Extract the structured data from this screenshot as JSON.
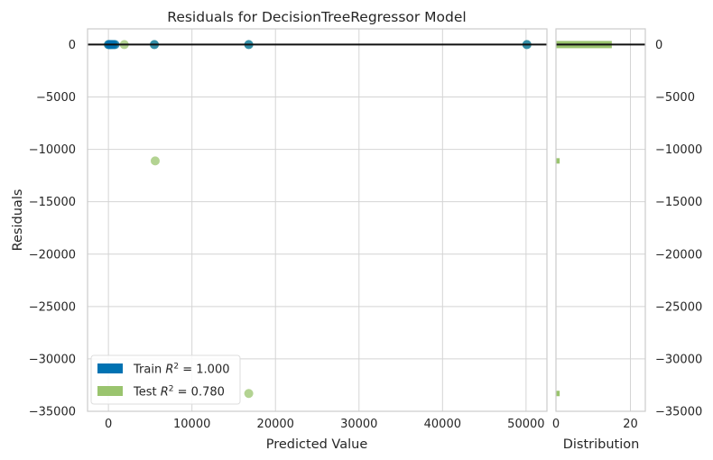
{
  "chart_data": {
    "type": "scatter",
    "title": "Residuals for DecisionTreeRegressor Model",
    "xlabel": "Predicted Value",
    "ylabel": "Residuals",
    "xlim": [
      -2500,
      52500
    ],
    "ylim": [
      -35000,
      1500
    ],
    "xticks": [
      0,
      10000,
      20000,
      30000,
      40000,
      50000
    ],
    "yticks": [
      0,
      -5000,
      -10000,
      -15000,
      -20000,
      -25000,
      -30000,
      -35000
    ],
    "xtick_labels": [
      "0",
      "10000",
      "20000",
      "30000",
      "40000",
      "50000"
    ],
    "ytick_labels": [
      "0",
      "−5000",
      "−10000",
      "−15000",
      "−20000",
      "−25000",
      "−30000",
      "−35000"
    ],
    "grid": true,
    "legend_position": "lower-left",
    "reference_line_y": 0,
    "series": [
      {
        "name": "Train",
        "legend_label": "Train R² = 1.000",
        "legend_text": "Train ",
        "r2_text": " = 1.000",
        "color": "#0072b2",
        "points": [
          [
            0,
            0
          ],
          [
            100,
            0
          ],
          [
            200,
            0
          ],
          [
            300,
            0
          ],
          [
            450,
            0
          ],
          [
            600,
            0
          ],
          [
            800,
            0
          ],
          [
            5500,
            0
          ],
          [
            16800,
            0
          ],
          [
            50100,
            0
          ]
        ]
      },
      {
        "name": "Test",
        "legend_label": "Test R² = 0.780",
        "legend_text": "Test ",
        "r2_text": " = 0.780",
        "color": "#9ac46e",
        "points": [
          [
            0,
            0
          ],
          [
            150,
            0
          ],
          [
            400,
            0
          ],
          [
            700,
            0
          ],
          [
            1900,
            0
          ],
          [
            5500,
            0
          ],
          [
            16800,
            0
          ],
          [
            50100,
            0
          ],
          [
            5600,
            -11100
          ],
          [
            16800,
            -33300
          ]
        ]
      }
    ],
    "distribution": {
      "xlabel": "Distribution",
      "xlim": [
        0,
        24
      ],
      "xticks": [
        0,
        20
      ],
      "xtick_labels": [
        "0",
        "20"
      ],
      "bins": [
        {
          "y": 0,
          "count": 15
        },
        {
          "y": -11100,
          "count": 1
        },
        {
          "y": -33300,
          "count": 1
        }
      ]
    }
  }
}
